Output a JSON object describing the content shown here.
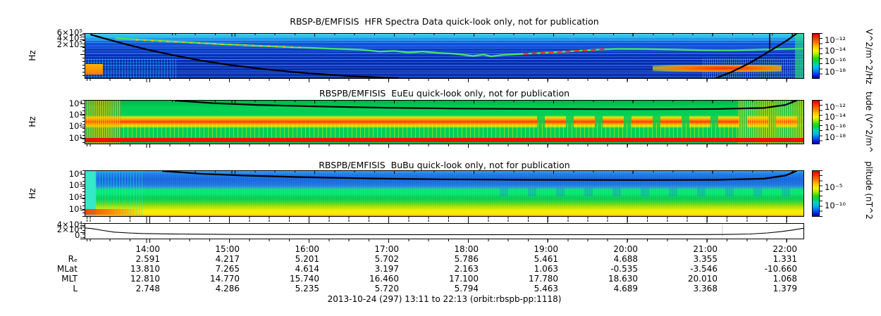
{
  "caption": "2013-10-24 (297) 13:11 to 22:13 (orbit:rbspb-pp:1118)",
  "time_axis": {
    "start": "13:11",
    "end": "22:13",
    "hour_labels": [
      "14:00",
      "15:00",
      "16:00",
      "17:00",
      "18:00",
      "19:00",
      "20:00",
      "21:00",
      "22:00"
    ]
  },
  "ephemeris": {
    "row_labels": [
      "Rₑ",
      "MLat",
      "MLT",
      "L"
    ],
    "columns": [
      {
        "time": "14:00",
        "re": "2.591",
        "mlat": "13.810",
        "mlt": "12.810",
        "l": "2.748"
      },
      {
        "time": "15:00",
        "re": "4.217",
        "mlat": "7.265",
        "mlt": "14.770",
        "l": "4.286"
      },
      {
        "time": "16:00",
        "re": "5.201",
        "mlat": "4.614",
        "mlt": "15.740",
        "l": "5.235"
      },
      {
        "time": "17:00",
        "re": "5.702",
        "mlat": "3.197",
        "mlt": "16.460",
        "l": "5.720"
      },
      {
        "time": "18:00",
        "re": "5.786",
        "mlat": "2.163",
        "mlt": "17.100",
        "l": "5.794"
      },
      {
        "time": "19:00",
        "re": "5.461",
        "mlat": "1.063",
        "mlt": "17.780",
        "l": "5.463"
      },
      {
        "time": "20:00",
        "re": "4.688",
        "mlat": "-0.535",
        "mlt": "18.630",
        "l": "4.689"
      },
      {
        "time": "21:00",
        "re": "3.355",
        "mlat": "-3.546",
        "mlt": "20.010",
        "l": "3.368"
      },
      {
        "time": "22:00",
        "re": "1.331",
        "mlat": "-10.660",
        "mlt": "1.068",
        "l": "1.379"
      }
    ]
  },
  "chart_data": [
    {
      "type": "heatmap",
      "title": "RBSP-B/EMFISIS  HFR Spectra Data quick-look only, not for publication",
      "ylabel": "Hz",
      "yscale": "log",
      "yticks": [
        "6×10⁵",
        "4×10⁵",
        "2×10⁵"
      ],
      "xrange": [
        "13:11",
        "22:13"
      ],
      "colorbar": {
        "labels": [
          "10⁻¹²",
          "10⁻¹⁴",
          "10⁻¹⁶",
          "10⁻¹⁸"
        ],
        "unit": "V^2/m^2/Hz",
        "palette": "rainbow"
      },
      "description": "Deep blue background with horizontal interference striping, cyan band at top, yellow-green upper-hybrid emission trace descending from upper left then wavy across the middle and rising to the right, orange burst at lower left, intense red streak at lower right, black fce overlay curve dropping below the panel near 16:00 and returning near 21:45, vertical black data-gap line near 21:50",
      "curves": {
        "fce_left": [
          [
            0.008,
            0.02
          ],
          [
            0.03,
            0.12
          ],
          [
            0.06,
            0.25
          ],
          [
            0.09,
            0.37
          ],
          [
            0.125,
            0.49
          ],
          [
            0.16,
            0.6
          ],
          [
            0.2,
            0.7
          ],
          [
            0.245,
            0.79
          ],
          [
            0.295,
            0.87
          ],
          [
            0.345,
            0.93
          ],
          [
            0.395,
            0.975
          ],
          [
            0.435,
            1.0
          ]
        ],
        "fce_right": [
          [
            0.878,
            1.0
          ],
          [
            0.9,
            0.86
          ],
          [
            0.925,
            0.66
          ],
          [
            0.945,
            0.47
          ],
          [
            0.962,
            0.3
          ],
          [
            0.978,
            0.14
          ],
          [
            0.99,
            0.0
          ]
        ],
        "gap_line": [
          [
            0.953,
            0.0
          ],
          [
            0.953,
            0.35
          ]
        ],
        "uhr_trace": [
          [
            0.042,
            0.1
          ],
          [
            0.09,
            0.145
          ],
          [
            0.14,
            0.19
          ],
          [
            0.19,
            0.235
          ],
          [
            0.24,
            0.27
          ],
          [
            0.29,
            0.305
          ],
          [
            0.34,
            0.335
          ],
          [
            0.385,
            0.36
          ],
          [
            0.41,
            0.4
          ],
          [
            0.43,
            0.385
          ],
          [
            0.45,
            0.42
          ],
          [
            0.47,
            0.4
          ],
          [
            0.49,
            0.43
          ],
          [
            0.515,
            0.45
          ],
          [
            0.54,
            0.5
          ],
          [
            0.555,
            0.47
          ],
          [
            0.565,
            0.51
          ],
          [
            0.58,
            0.48
          ],
          [
            0.6,
            0.46
          ],
          [
            0.625,
            0.44
          ],
          [
            0.65,
            0.42
          ],
          [
            0.68,
            0.39
          ],
          [
            0.71,
            0.36
          ],
          [
            0.74,
            0.34
          ],
          [
            0.78,
            0.345
          ],
          [
            0.82,
            0.355
          ],
          [
            0.86,
            0.37
          ],
          [
            0.9,
            0.375
          ],
          [
            0.935,
            0.36
          ],
          [
            0.97,
            0.345
          ],
          [
            1.0,
            0.335
          ]
        ],
        "uhr_hot": [
          [
            0.61,
            0.455
          ],
          [
            0.64,
            0.43
          ],
          [
            0.67,
            0.4
          ],
          [
            0.7,
            0.37
          ],
          [
            0.725,
            0.345
          ]
        ],
        "uhr_warm": [
          [
            0.07,
            0.135
          ],
          [
            0.13,
            0.185
          ],
          [
            0.19,
            0.235
          ],
          [
            0.25,
            0.275
          ],
          [
            0.3,
            0.31
          ]
        ]
      }
    },
    {
      "type": "heatmap",
      "title": "RBSPB/EMFISIS  EuEu quick-look only, not for publication",
      "ylabel": "Hz",
      "yscale": "log",
      "yticks": [
        "10⁴",
        "10³",
        "10²",
        "10¹"
      ],
      "xrange": [
        "13:11",
        "22:13"
      ],
      "colorbar": {
        "labels": [
          "10⁻¹²",
          "10⁻¹⁴",
          "10⁻¹⁶",
          "10⁻¹⁸"
        ],
        "unit": "tude (V^2/m^",
        "palette": "rainbow"
      },
      "description": "Bright green background, broad red-orange emission band near 100-600 Hz breaking into discrete blobs after 18:30, solid red band along the bottom edge, yellow vertical striation noise in the lower half, enhanced yellow-orange activity at the left edge and after 21:30, black fce overlay entering the top near 15:20 and flattening near 4 kHz",
      "curves": {
        "fce": [
          [
            0.127,
            0.0
          ],
          [
            0.18,
            0.06
          ],
          [
            0.24,
            0.1
          ],
          [
            0.32,
            0.135
          ],
          [
            0.42,
            0.165
          ],
          [
            0.52,
            0.185
          ],
          [
            0.64,
            0.195
          ],
          [
            0.78,
            0.2
          ],
          [
            0.88,
            0.195
          ],
          [
            0.945,
            0.17
          ],
          [
            0.975,
            0.1
          ],
          [
            0.99,
            0.0
          ]
        ]
      }
    },
    {
      "type": "heatmap",
      "title": "RBSPB/EMFISIS  BuBu quick-look only, not for publication",
      "ylabel": "Hz",
      "yscale": "log",
      "yticks": [
        "10⁴",
        "10³",
        "10²",
        "10¹"
      ],
      "xrange": [
        "13:11",
        "22:13"
      ],
      "colorbar": {
        "labels": [
          "10⁻⁵",
          "10⁻¹⁰"
        ],
        "unit": "plitude (nT^2",
        "palette": "rainbow"
      },
      "description": "Blue above about 1 kHz grading to green from 100-1000 Hz with brighter green wavy blobs, yellow-green to yellow below 30 Hz, orange-red burst at lower left, cyan column at the left edge, black fce overlay like the EuEu panel",
      "curves": {
        "fce": [
          [
            0.108,
            0.0
          ],
          [
            0.16,
            0.06
          ],
          [
            0.22,
            0.1
          ],
          [
            0.3,
            0.135
          ],
          [
            0.4,
            0.165
          ],
          [
            0.5,
            0.185
          ],
          [
            0.62,
            0.195
          ],
          [
            0.78,
            0.2
          ],
          [
            0.88,
            0.195
          ],
          [
            0.945,
            0.17
          ],
          [
            0.975,
            0.1
          ],
          [
            0.99,
            0.0
          ]
        ]
      }
    },
    {
      "type": "line",
      "name": "fce monitor, linear scale",
      "yticks": [
        "4×10⁴",
        "2×10⁴",
        "0."
      ],
      "ylim_hz": [
        0,
        46000
      ],
      "xrange": [
        "13:11",
        "22:13"
      ],
      "points_frac": [
        [
          0.0,
          0.28
        ],
        [
          0.01,
          0.33
        ],
        [
          0.025,
          0.45
        ],
        [
          0.04,
          0.56
        ],
        [
          0.06,
          0.62
        ],
        [
          0.08,
          0.655
        ],
        [
          0.11,
          0.68
        ],
        [
          0.15,
          0.7
        ],
        [
          0.2,
          0.72
        ],
        [
          0.3,
          0.73
        ],
        [
          0.45,
          0.735
        ],
        [
          0.6,
          0.735
        ],
        [
          0.75,
          0.735
        ],
        [
          0.85,
          0.73
        ],
        [
          0.895,
          0.72
        ],
        [
          0.925,
          0.69
        ],
        [
          0.95,
          0.62
        ],
        [
          0.97,
          0.52
        ],
        [
          0.985,
          0.42
        ],
        [
          1.0,
          0.3
        ]
      ],
      "values_hz_approx": {
        "start": 33000,
        "plateau": 12000,
        "end": 32000
      }
    }
  ]
}
